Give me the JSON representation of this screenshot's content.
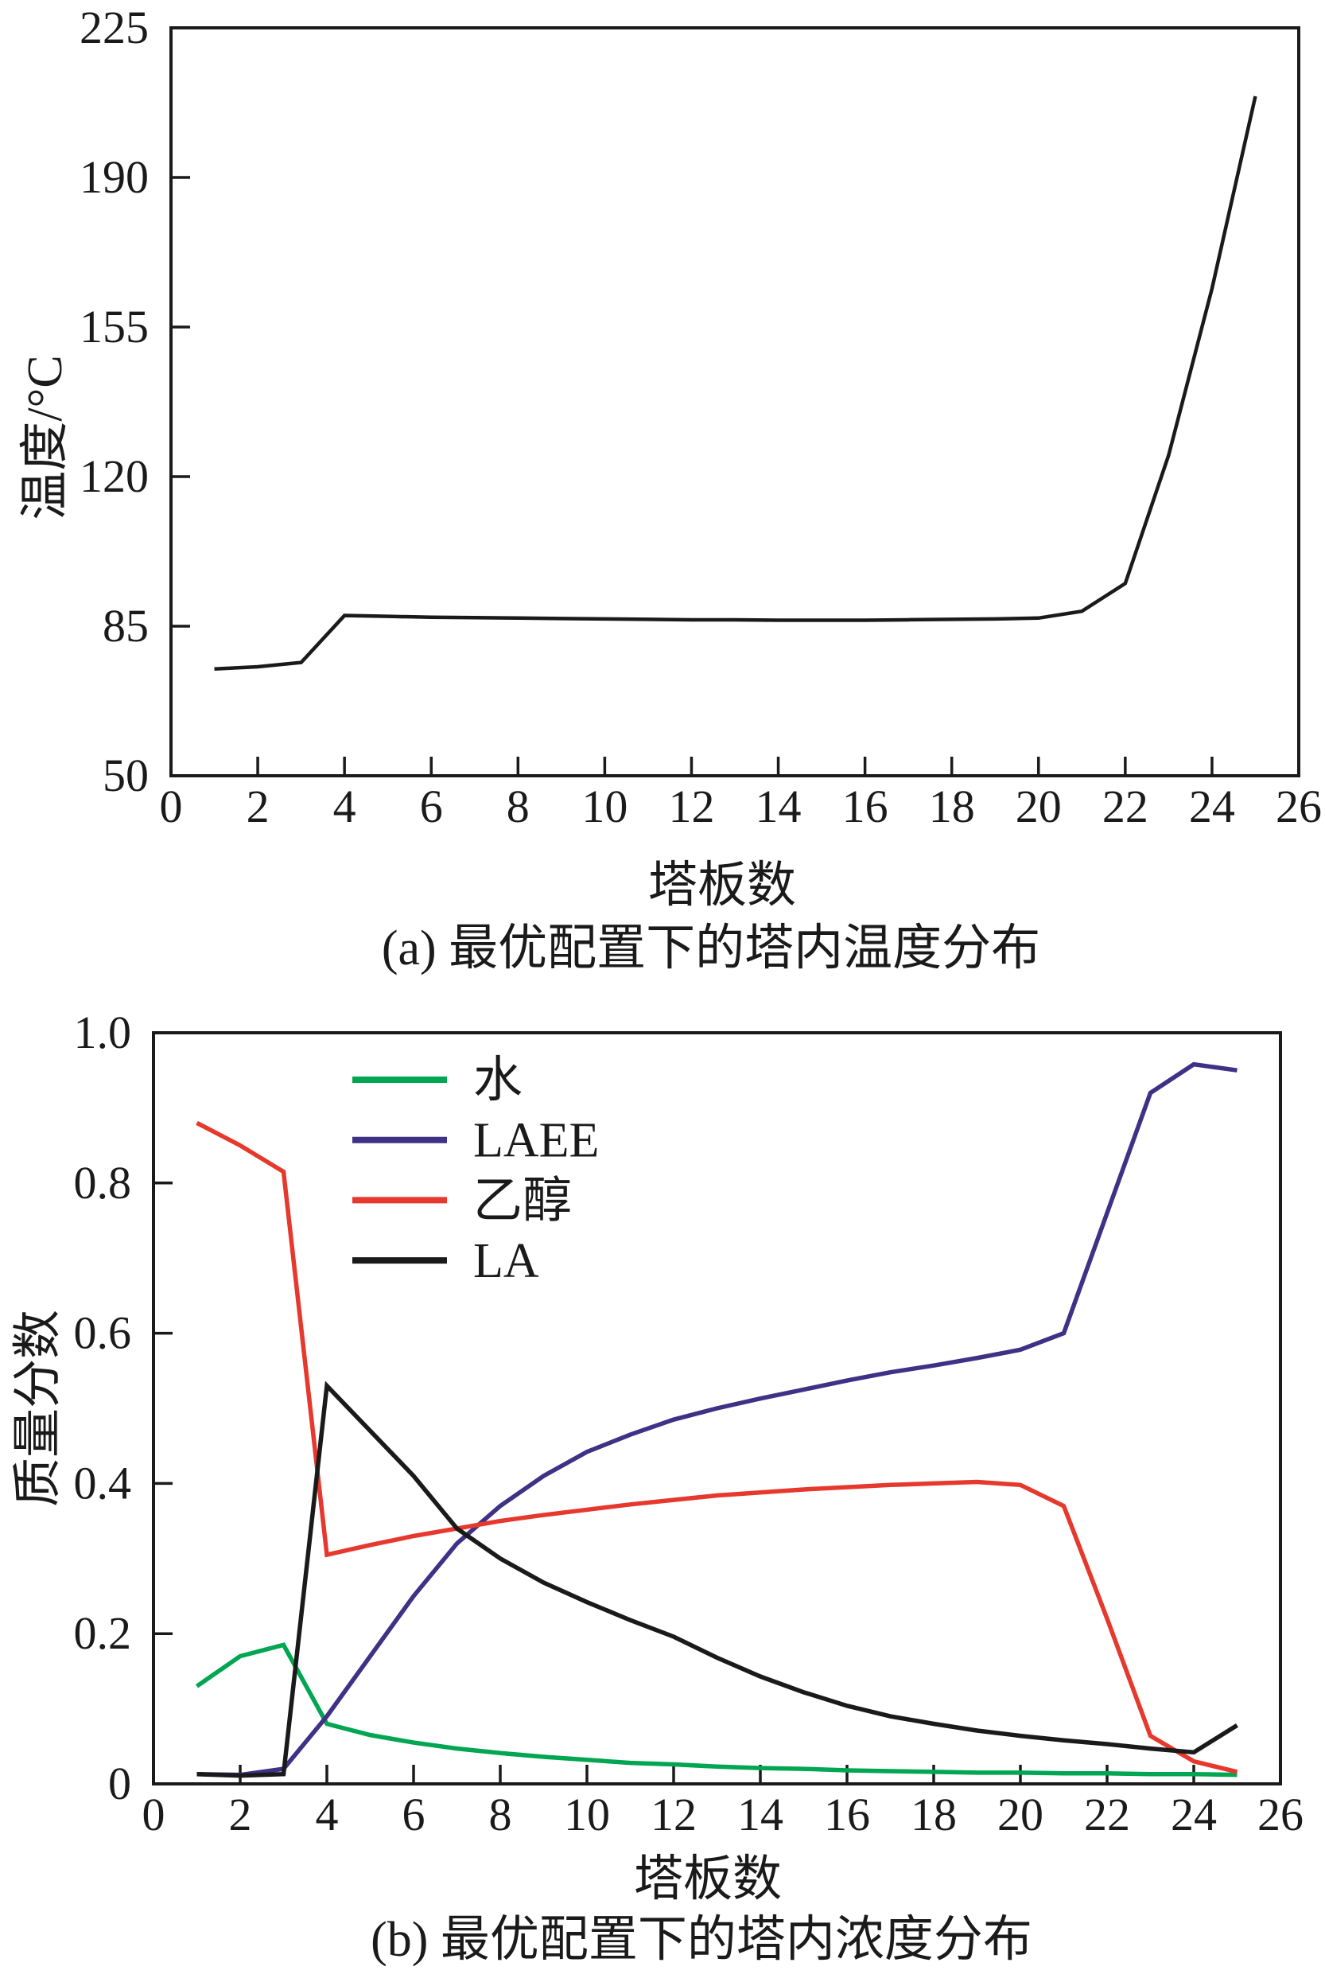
{
  "page": {
    "background": "#ffffff",
    "text_color": "#1a1a1a"
  },
  "chart_data": [
    {
      "id": "chart-a",
      "type": "line",
      "caption": "(a) 最优配置下的塔内温度分布",
      "xlabel": "塔板数",
      "ylabel": "温度/°C",
      "xlim": [
        0,
        26
      ],
      "ylim": [
        50,
        225
      ],
      "xticks": [
        0,
        2,
        4,
        6,
        8,
        10,
        12,
        14,
        16,
        18,
        20,
        22,
        24,
        26
      ],
      "xticklabels": [
        "0",
        "2",
        "4",
        "6",
        "8",
        "10",
        "12",
        "14",
        "16",
        "18",
        "20",
        "22",
        "24",
        "26"
      ],
      "yticks": [
        50,
        85,
        120,
        155,
        190,
        225
      ],
      "yticklabels": [
        "50",
        "85",
        "120",
        "155",
        "190",
        "225"
      ],
      "grid": false,
      "legend": null,
      "x": [
        1,
        2,
        3,
        4,
        5,
        6,
        7,
        8,
        9,
        10,
        11,
        12,
        13,
        14,
        15,
        16,
        17,
        18,
        19,
        20,
        21,
        22,
        23,
        24,
        25
      ],
      "series": [
        {
          "name": "温度",
          "color": "#1a1a1a",
          "values": [
            75,
            75.5,
            76.5,
            87.5,
            87.3,
            87.1,
            87.0,
            86.9,
            86.8,
            86.7,
            86.6,
            86.5,
            86.5,
            86.4,
            86.4,
            86.4,
            86.5,
            86.6,
            86.7,
            86.9,
            88.5,
            95,
            125,
            164,
            209
          ]
        }
      ]
    },
    {
      "id": "chart-b",
      "type": "line",
      "caption": "(b) 最优配置下的塔内浓度分布",
      "xlabel": "塔板数",
      "ylabel": "质量分数",
      "xlim": [
        0,
        26
      ],
      "ylim": [
        0,
        1.0
      ],
      "xticks": [
        0,
        2,
        4,
        6,
        8,
        10,
        12,
        14,
        16,
        18,
        20,
        22,
        24,
        26
      ],
      "xticklabels": [
        "0",
        "2",
        "4",
        "6",
        "8",
        "10",
        "12",
        "14",
        "16",
        "18",
        "20",
        "22",
        "24",
        "26"
      ],
      "yticks": [
        0,
        0.2,
        0.4,
        0.6,
        0.8,
        1.0
      ],
      "yticklabels": [
        "0",
        "0.2",
        "0.4",
        "0.6",
        "0.8",
        "1.0"
      ],
      "grid": false,
      "legend": {
        "position": "upper-left-inside",
        "entries": [
          "水",
          "LAEE",
          "乙醇",
          "LA"
        ]
      },
      "x": [
        1,
        2,
        3,
        4,
        5,
        6,
        7,
        8,
        9,
        10,
        11,
        12,
        13,
        14,
        15,
        16,
        17,
        18,
        19,
        20,
        21,
        22,
        23,
        24,
        25
      ],
      "series": [
        {
          "name": "水",
          "color": "#00a651",
          "values": [
            0.13,
            0.17,
            0.185,
            0.08,
            0.065,
            0.055,
            0.047,
            0.041,
            0.036,
            0.032,
            0.028,
            0.026,
            0.023,
            0.021,
            0.02,
            0.018,
            0.017,
            0.016,
            0.015,
            0.015,
            0.014,
            0.014,
            0.013,
            0.013,
            0.012
          ]
        },
        {
          "name": "LAEE",
          "color": "#3f3185",
          "values": [
            0.013,
            0.012,
            0.02,
            0.09,
            0.17,
            0.25,
            0.32,
            0.37,
            0.41,
            0.442,
            0.465,
            0.485,
            0.5,
            0.513,
            0.525,
            0.537,
            0.548,
            0.557,
            0.567,
            0.578,
            0.6,
            0.76,
            0.92,
            0.958,
            0.95
          ]
        },
        {
          "name": "乙醇",
          "color": "#e6382d",
          "values": [
            0.88,
            0.85,
            0.815,
            0.305,
            0.318,
            0.33,
            0.34,
            0.35,
            0.358,
            0.365,
            0.372,
            0.378,
            0.384,
            0.388,
            0.392,
            0.395,
            0.398,
            0.4,
            0.402,
            0.398,
            0.37,
            0.22,
            0.064,
            0.03,
            0.016
          ]
        },
        {
          "name": "LA",
          "color": "#1a1a1a",
          "values": [
            0.013,
            0.011,
            0.013,
            0.53,
            0.47,
            0.41,
            0.34,
            0.3,
            0.268,
            0.242,
            0.218,
            0.196,
            0.168,
            0.143,
            0.122,
            0.104,
            0.09,
            0.08,
            0.071,
            0.064,
            0.058,
            0.053,
            0.047,
            0.042,
            0.078
          ]
        }
      ]
    }
  ]
}
